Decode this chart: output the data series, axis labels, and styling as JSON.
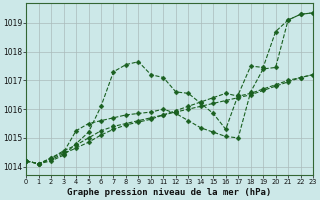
{
  "title": "Graphe pression niveau de la mer (hPa)",
  "bg_color": "#cce8e8",
  "grid_color": "#aabbbb",
  "line_color": "#1a6020",
  "xlim": [
    0,
    23
  ],
  "ylim": [
    1013.7,
    1019.7
  ],
  "yticks": [
    1014,
    1015,
    1016,
    1017,
    1018,
    1019
  ],
  "xticks": [
    0,
    1,
    2,
    3,
    4,
    5,
    6,
    7,
    8,
    9,
    10,
    11,
    12,
    13,
    14,
    15,
    16,
    17,
    18,
    19,
    20,
    21,
    22,
    23
  ],
  "series": [
    {
      "x": [
        0,
        1,
        2,
        3,
        4,
        5,
        6,
        7,
        8,
        9,
        10,
        11,
        12,
        13,
        14,
        15,
        16,
        17,
        18,
        19,
        20,
        21,
        22,
        23
      ],
      "y": [
        1014.2,
        1014.1,
        1014.2,
        1014.4,
        1014.8,
        1015.2,
        1016.1,
        1017.3,
        1017.55,
        1017.65,
        1017.2,
        1017.1,
        1016.6,
        1016.55,
        1016.2,
        1015.85,
        1015.3,
        1016.5,
        1017.5,
        1017.45,
        1018.7,
        1019.1,
        1019.3,
        1019.35
      ]
    },
    {
      "x": [
        0,
        1,
        2,
        3,
        4,
        5,
        6,
        7,
        8,
        9,
        10,
        11,
        12,
        13,
        14,
        15,
        16,
        17,
        18,
        19,
        20,
        21,
        22,
        23
      ],
      "y": [
        1014.2,
        1014.1,
        1014.3,
        1014.55,
        1014.75,
        1015.0,
        1015.25,
        1015.4,
        1015.5,
        1015.6,
        1015.7,
        1015.8,
        1015.9,
        1016.0,
        1016.1,
        1016.2,
        1016.3,
        1016.4,
        1016.5,
        1016.65,
        1016.8,
        1016.95,
        1017.1,
        1017.2
      ]
    },
    {
      "x": [
        0,
        1,
        2,
        3,
        4,
        5,
        6,
        7,
        8,
        9,
        10,
        11,
        12,
        13,
        14,
        15,
        16,
        17,
        18,
        19,
        20,
        21,
        22,
        23
      ],
      "y": [
        1014.2,
        1014.1,
        1014.25,
        1014.45,
        1014.65,
        1014.85,
        1015.1,
        1015.3,
        1015.45,
        1015.55,
        1015.65,
        1015.8,
        1015.95,
        1016.1,
        1016.25,
        1016.4,
        1016.55,
        1016.45,
        1016.55,
        1016.7,
        1016.85,
        1017.0,
        1017.1,
        1017.2
      ]
    },
    {
      "x": [
        0,
        1,
        2,
        3,
        4,
        5,
        6,
        7,
        8,
        9,
        10,
        11,
        12,
        13,
        14,
        15,
        16,
        17,
        18,
        19,
        20,
        21,
        22,
        23
      ],
      "y": [
        1014.2,
        1014.1,
        1014.3,
        1014.5,
        1015.25,
        1015.5,
        1015.6,
        1015.7,
        1015.8,
        1015.85,
        1015.9,
        1016.0,
        1015.85,
        1015.6,
        1015.35,
        1015.2,
        1015.05,
        1015.0,
        1016.6,
        1017.4,
        1017.45,
        1019.1,
        1019.3,
        1019.35
      ]
    }
  ]
}
